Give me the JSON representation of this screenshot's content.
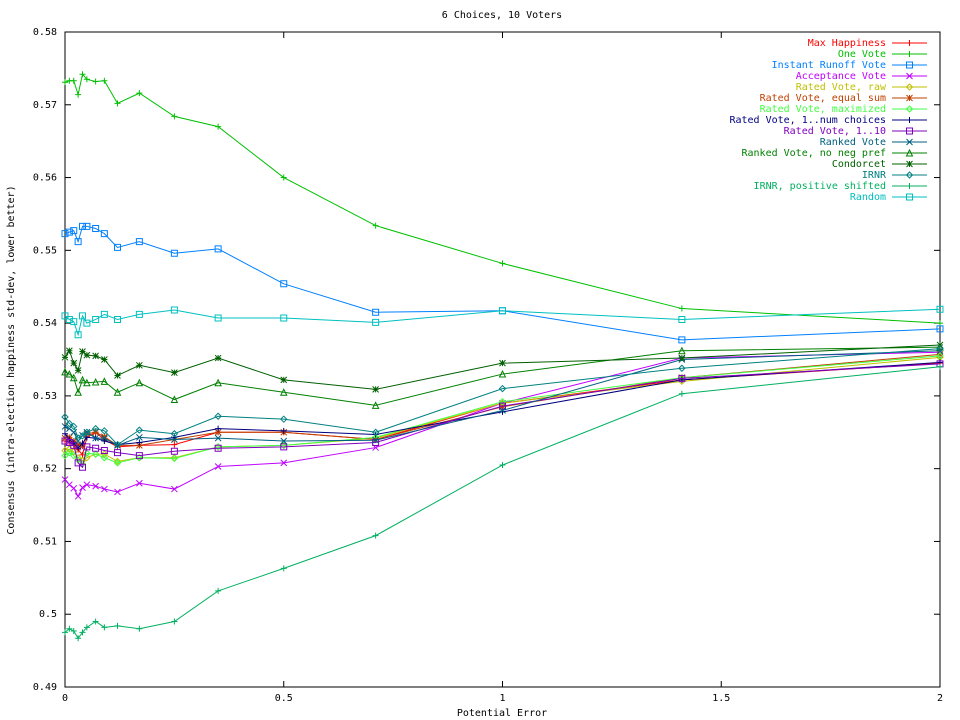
{
  "chart_data": {
    "type": "line",
    "title": "6 Choices, 10 Voters",
    "xlabel": "Potential Error",
    "ylabel": "Consensus (intra-election happiness std-dev, lower better)",
    "xlim": [
      0,
      2
    ],
    "ylim": [
      0.49,
      0.58
    ],
    "xticks": [
      0,
      0.5,
      1,
      1.5,
      2
    ],
    "xtick_labels": [
      "0",
      "0.5",
      "1",
      "1.5",
      "2"
    ],
    "yticks": [
      0.49,
      0.5,
      0.51,
      0.52,
      0.53,
      0.54,
      0.55,
      0.56,
      0.57,
      0.58
    ],
    "ytick_labels": [
      "0.49",
      "0.5",
      "0.51",
      "0.52",
      "0.53",
      "0.54",
      "0.55",
      "0.56",
      "0.57",
      "0.58"
    ],
    "legend_position": "top-right",
    "grid": false,
    "x": [
      0,
      0.01,
      0.02,
      0.03,
      0.04,
      0.05,
      0.07,
      0.09,
      0.12,
      0.17,
      0.25,
      0.35,
      0.5,
      0.71,
      1,
      1.41,
      2
    ],
    "series": [
      {
        "name": "Max Happiness",
        "color": "#ff0000",
        "marker": "plus",
        "values": [
          0.5238,
          0.5237,
          0.5232,
          0.5226,
          0.5219,
          0.5243,
          0.525,
          0.524,
          0.523,
          0.5232,
          0.5233,
          0.525,
          0.525,
          0.524,
          0.529,
          0.5322,
          0.5345
        ]
      },
      {
        "name": "One Vote",
        "color": "#00c000",
        "marker": "plus",
        "values": [
          0.5731,
          0.5733,
          0.5733,
          0.5714,
          0.5742,
          0.5735,
          0.5732,
          0.5733,
          0.5702,
          0.5716,
          0.5684,
          0.567,
          0.56,
          0.5534,
          0.5482,
          0.542,
          0.54
        ]
      },
      {
        "name": "Instant Runoff Vote",
        "color": "#0080ff",
        "marker": "square",
        "values": [
          0.5523,
          0.5525,
          0.5527,
          0.5512,
          0.5533,
          0.5533,
          0.553,
          0.5523,
          0.5504,
          0.5512,
          0.5496,
          0.5502,
          0.5454,
          0.5415,
          0.5417,
          0.5377,
          0.5392
        ]
      },
      {
        "name": "Acceptance Vote",
        "color": "#c000ff",
        "marker": "x",
        "values": [
          0.5185,
          0.5178,
          0.5173,
          0.5162,
          0.5174,
          0.5178,
          0.5176,
          0.5172,
          0.5168,
          0.518,
          0.5172,
          0.5203,
          0.5208,
          0.5229,
          0.529,
          0.5352,
          0.536
        ]
      },
      {
        "name": "Rated Vote, raw",
        "color": "#c0c000",
        "marker": "diamond",
        "values": [
          0.5225,
          0.5227,
          0.5223,
          0.5215,
          0.5211,
          0.5215,
          0.522,
          0.522,
          0.521,
          0.5215,
          0.5215,
          0.523,
          0.5232,
          0.5242,
          0.529,
          0.532,
          0.5353
        ]
      },
      {
        "name": "Rated Vote, equal sum",
        "color": "#c04000",
        "marker": "star",
        "values": [
          0.5242,
          0.5243,
          0.5238,
          0.5233,
          0.5231,
          0.5248,
          0.525,
          0.5244,
          0.5232,
          0.5232,
          0.524,
          0.525,
          0.525,
          0.524,
          0.5285,
          0.5325,
          0.5357
        ]
      },
      {
        "name": "Rated Vote, maximized",
        "color": "#40ff40",
        "marker": "diamond",
        "values": [
          0.5218,
          0.5222,
          0.5218,
          0.5212,
          0.5206,
          0.5221,
          0.522,
          0.5215,
          0.5208,
          0.5215,
          0.5214,
          0.523,
          0.5232,
          0.5243,
          0.5292,
          0.5325,
          0.5355
        ]
      },
      {
        "name": "Rated Vote, 1..num choices",
        "color": "#000080",
        "marker": "plus",
        "values": [
          0.5248,
          0.524,
          0.5235,
          0.5228,
          0.5235,
          0.5243,
          0.5242,
          0.5238,
          0.5233,
          0.5236,
          0.5243,
          0.5255,
          0.5252,
          0.5247,
          0.5278,
          0.5322,
          0.5346
        ]
      },
      {
        "name": "Rated Vote, 1..10",
        "color": "#8000c0",
        "marker": "square",
        "values": [
          0.5238,
          0.5236,
          0.5232,
          0.5208,
          0.5202,
          0.523,
          0.5228,
          0.5225,
          0.5222,
          0.5218,
          0.5224,
          0.5228,
          0.523,
          0.5236,
          0.5286,
          0.5324,
          0.5344
        ]
      },
      {
        "name": "Ranked Vote",
        "color": "#006080",
        "marker": "x",
        "values": [
          0.5258,
          0.5255,
          0.525,
          0.5238,
          0.5246,
          0.525,
          0.5242,
          0.5242,
          0.5232,
          0.5243,
          0.524,
          0.5242,
          0.5238,
          0.5239,
          0.528,
          0.535,
          0.5362
        ]
      },
      {
        "name": "Ranked Vote, no neg pref",
        "color": "#008000",
        "marker": "triangle",
        "values": [
          0.5333,
          0.533,
          0.5325,
          0.5305,
          0.5322,
          0.5318,
          0.5319,
          0.532,
          0.5305,
          0.5318,
          0.5295,
          0.5318,
          0.5305,
          0.5287,
          0.533,
          0.5362,
          0.5367
        ]
      },
      {
        "name": "Condorcet",
        "color": "#006000",
        "marker": "star",
        "values": [
          0.5353,
          0.5362,
          0.5345,
          0.5335,
          0.5361,
          0.5356,
          0.5355,
          0.535,
          0.5328,
          0.5342,
          0.5332,
          0.5352,
          0.5322,
          0.5309,
          0.5345,
          0.5352,
          0.537
        ]
      },
      {
        "name": "IRNR",
        "color": "#008080",
        "marker": "diamond",
        "values": [
          0.5271,
          0.5262,
          0.5258,
          0.5242,
          0.5245,
          0.525,
          0.5255,
          0.5252,
          0.5233,
          0.5253,
          0.5248,
          0.5272,
          0.5268,
          0.525,
          0.531,
          0.5338,
          0.5365
        ]
      },
      {
        "name": "IRNR, positive shifted",
        "color": "#00b060",
        "marker": "plus",
        "values": [
          0.4975,
          0.498,
          0.4977,
          0.4967,
          0.4975,
          0.4982,
          0.499,
          0.4982,
          0.4984,
          0.498,
          0.499,
          0.5032,
          0.5063,
          0.5108,
          0.5205,
          0.5303,
          0.534
        ]
      },
      {
        "name": "Random",
        "color": "#00c0c0",
        "marker": "square",
        "values": [
          0.541,
          0.5405,
          0.5402,
          0.5384,
          0.541,
          0.54,
          0.5405,
          0.5412,
          0.5405,
          0.5412,
          0.5418,
          0.5407,
          0.5407,
          0.5401,
          0.5417,
          0.5405,
          0.5419
        ]
      }
    ]
  }
}
